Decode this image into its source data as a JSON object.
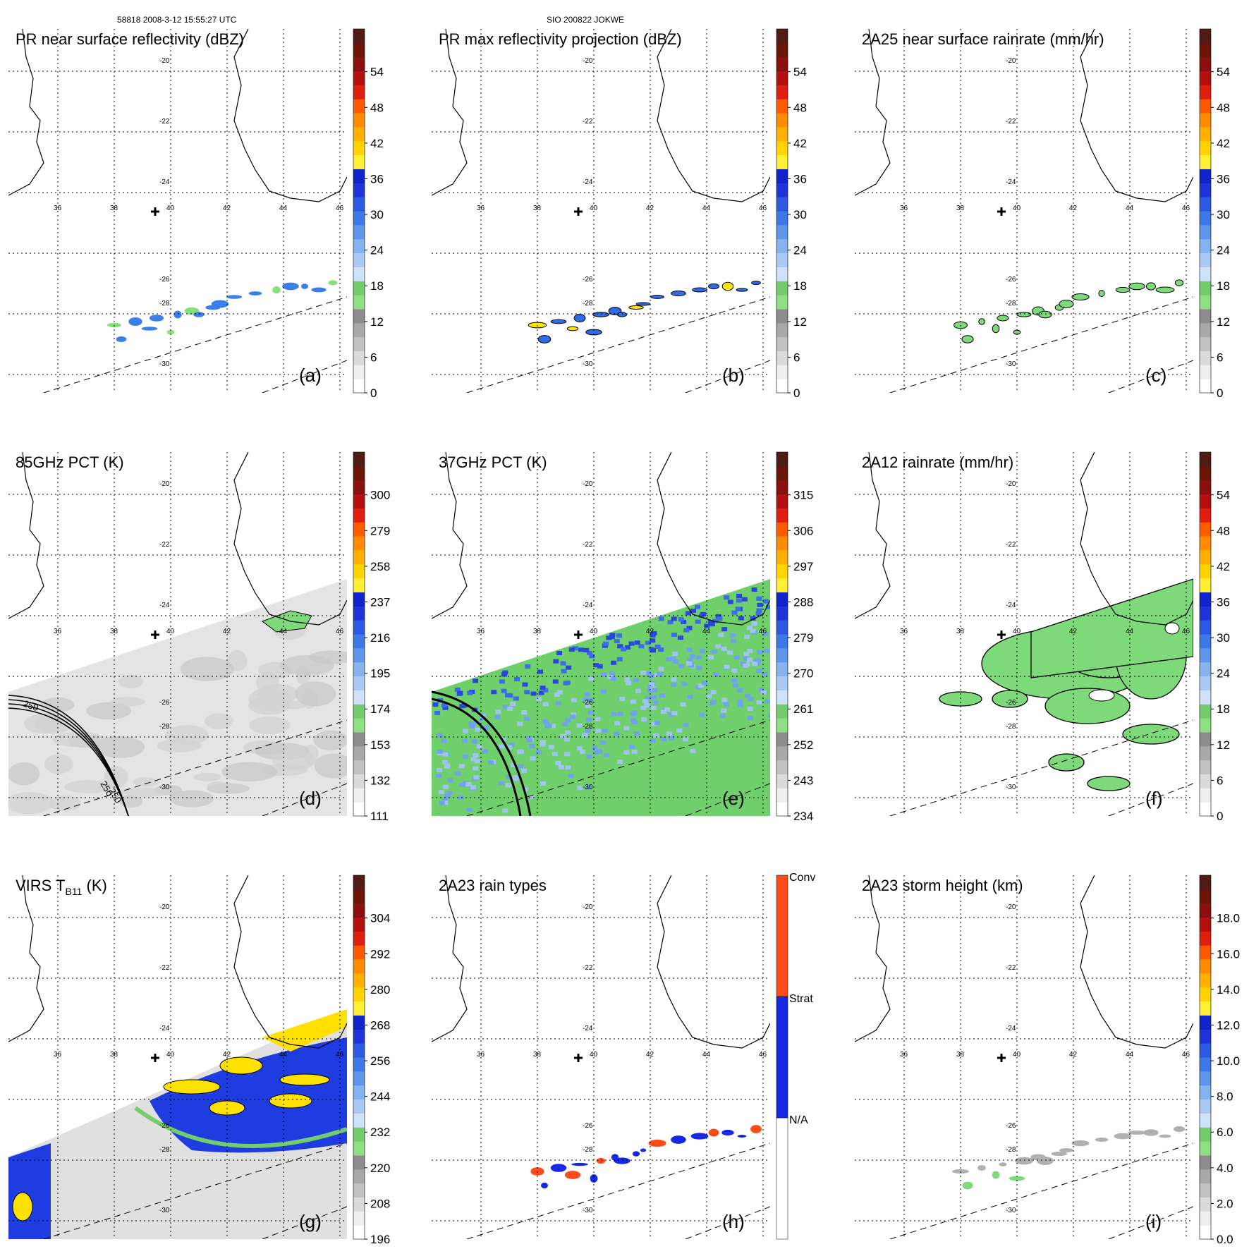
{
  "header": {
    "left": "58818 2008-3-12 15:55:27 UTC",
    "center": "SIO 200822 JOKWE"
  },
  "map": {
    "lon_labels": [
      "36",
      "38",
      "40",
      "42",
      "44",
      "46"
    ],
    "lat_labels": [
      "-20",
      "-22",
      "-24",
      "-26",
      "-28",
      "-30"
    ],
    "storm_marker": "cross-icon"
  },
  "panels": [
    {
      "id": "a",
      "title": "PR near surface reflectivity (dBZ)",
      "letter": "(a)",
      "ticks": [
        "0",
        "6",
        "12",
        "18",
        "24",
        "30",
        "36",
        "42",
        "48",
        "54"
      ],
      "field": "pr-swath",
      "fill": "sparse-blue",
      "colors": [
        "#2e6be6",
        "#3b7fe8",
        "#88e07a"
      ]
    },
    {
      "id": "b",
      "title": "PR max reflectivity projection (dBZ)",
      "letter": "(b)",
      "ticks": [
        "0",
        "6",
        "12",
        "18",
        "24",
        "30",
        "36",
        "42",
        "48",
        "54"
      ],
      "field": "pr-swath",
      "fill": "contoured-blue",
      "colors": [
        "#2e6be6",
        "#ffe500",
        "#000000"
      ]
    },
    {
      "id": "c",
      "title": "2A25 near surface rainrate (mm/hr)",
      "letter": "(c)",
      "ticks": [
        "0",
        "6",
        "12",
        "18",
        "24",
        "30",
        "36",
        "42",
        "48",
        "54"
      ],
      "field": "pr-swath",
      "fill": "contoured-green",
      "colors": [
        "#7ed97a",
        "#000000"
      ]
    },
    {
      "id": "d",
      "title": "85GHz PCT (K)",
      "letter": "(d)",
      "ticks": [
        "111",
        "132",
        "153",
        "174",
        "195",
        "216",
        "237",
        "258",
        "279",
        "300"
      ],
      "field": "tmi-swath",
      "fill": "gray",
      "colors": [
        "#d8d8d8",
        "#b4b4b4",
        "#7ed97a"
      ],
      "contour_labels": [
        "250",
        "250",
        "250"
      ]
    },
    {
      "id": "e",
      "title": "37GHz PCT (K)",
      "letter": "(e)",
      "ticks": [
        "234",
        "243",
        "252",
        "261",
        "270",
        "279",
        "288",
        "297",
        "306",
        "315"
      ],
      "field": "tmi-swath",
      "fill": "green-blue",
      "colors": [
        "#6fcf6a",
        "#9fc4f2",
        "#3a6ee8",
        "#1b2fd8"
      ]
    },
    {
      "id": "f",
      "title": "2A12 rainrate (mm/hr)",
      "letter": "(f)",
      "ticks": [
        "0",
        "6",
        "12",
        "18",
        "24",
        "30",
        "36",
        "42",
        "48",
        "54"
      ],
      "field": "tmi-swath",
      "fill": "green-patches",
      "colors": [
        "#7ed97a",
        "#000000"
      ]
    },
    {
      "id": "g",
      "title": "VIRS T",
      "title_sub": "B11",
      "title_suffix": " (K)",
      "letter": "(g)",
      "ticks": [
        "196",
        "208",
        "220",
        "232",
        "244",
        "256",
        "268",
        "280",
        "292",
        "304"
      ],
      "field": "virs-swath",
      "fill": "ir",
      "colors": [
        "#1e3ce0",
        "#ffe100",
        "#d4d4d4"
      ]
    },
    {
      "id": "h",
      "title": "2A23 rain types",
      "letter": "(h)",
      "ticks": [
        "N/A",
        "Strat",
        "Conv"
      ],
      "field": "pr-swath",
      "fill": "raintype",
      "colors": [
        "#1428e6",
        "#ff4a1a"
      ]
    },
    {
      "id": "i",
      "title": "2A23 storm height (km)",
      "letter": "(i)",
      "ticks": [
        "0.0",
        "2.0",
        "4.0",
        "6.0",
        "8.0",
        "10.0",
        "12.0",
        "14.0",
        "16.0",
        "18.0"
      ],
      "field": "pr-swath",
      "fill": "sparse-gray",
      "colors": [
        "#b0b0b0",
        "#7ed97a"
      ]
    }
  ],
  "colorbar": {
    "standard": [
      "#ffffff",
      "#eeeeee",
      "#dadada",
      "#c2c2c2",
      "#a8a8a8",
      "#8c8c8c",
      "#8fdf85",
      "#74cc6d",
      "#cfe0fb",
      "#aac9f4",
      "#86b2ee",
      "#5f96ea",
      "#3c79e6",
      "#2d59e0",
      "#1e34d8",
      "#1122cc",
      "#ffee33",
      "#ffd400",
      "#ffb000",
      "#ff8c00",
      "#ff5a00",
      "#e01e10",
      "#b41010",
      "#8c0f0f",
      "#6a1508",
      "#4e1c12"
    ],
    "raintype": [
      "#ffffff",
      "#1428e6",
      "#ff4a1a"
    ]
  }
}
